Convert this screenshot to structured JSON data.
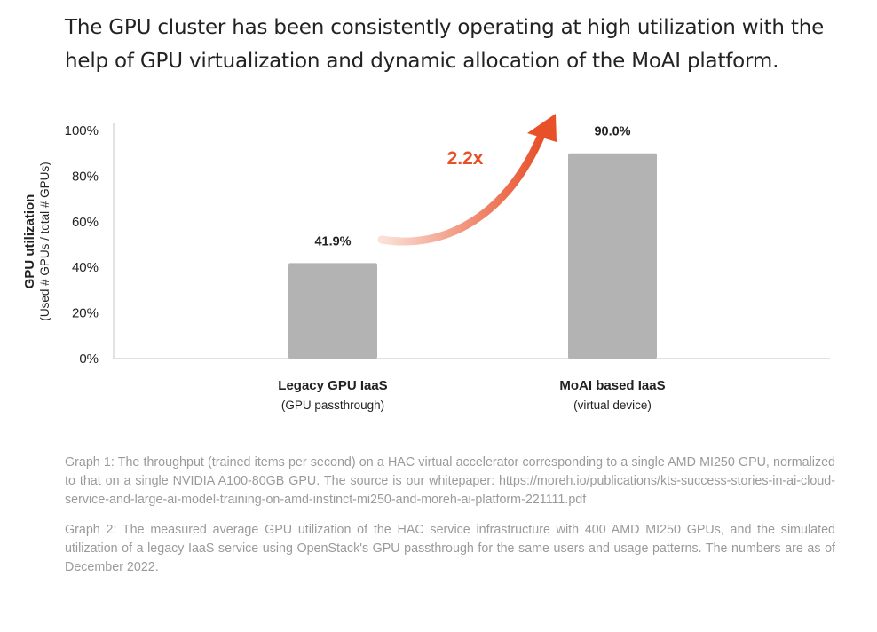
{
  "headline": "The GPU cluster has been consistently operating at high utilization with the help of GPU virtualization and dynamic allocation of the MoAI platform.",
  "colors": {
    "bar": "#b3b3b3",
    "axis": "#cfcfcf",
    "text": "#222222",
    "footnote": "#9a9a9a",
    "accent": "#e8502a",
    "accent_light": "#fbe1d8"
  },
  "chart_data": {
    "type": "bar",
    "title": "",
    "ylabel": "GPU utilization",
    "ylabel_sub": "(Used # GPUs / total # GPUs)",
    "ylim": [
      0,
      100
    ],
    "yticks": [
      0,
      20,
      40,
      60,
      80,
      100
    ],
    "ytick_labels": [
      "0%",
      "20%",
      "40%",
      "60%",
      "80%",
      "100%"
    ],
    "grid": false,
    "categories": [
      "Legacy GPU IaaS",
      "MoAI based IaaS"
    ],
    "category_sublabels": [
      "(GPU passthrough)",
      "(virtual device)"
    ],
    "values": [
      41.9,
      90.0
    ],
    "value_labels": [
      "41.9%",
      "90.0%"
    ],
    "annotation": {
      "text": "2.2x",
      "type": "arrow",
      "from_category": "Legacy GPU IaaS",
      "to_category": "MoAI based IaaS"
    }
  },
  "footnotes": [
    "Graph 1: The throughput (trained items per second) on a HAC virtual accelerator corresponding to a single AMD MI250 GPU, normalized to that on a single NVIDIA A100-80GB GPU. The source is our whitepaper: https://moreh.io/publications/kts-success-stories-in-ai-cloud-service-and-large-ai-model-training-on-amd-instinct-mi250-and-moreh-ai-platform-221111.pdf",
    "Graph 2: The measured average GPU utilization of the HAC service infrastructure with 400 AMD MI250 GPUs, and the simulated utilization of a legacy IaaS service using OpenStack's GPU passthrough for the same users and usage patterns. The numbers are as of December 2022."
  ]
}
